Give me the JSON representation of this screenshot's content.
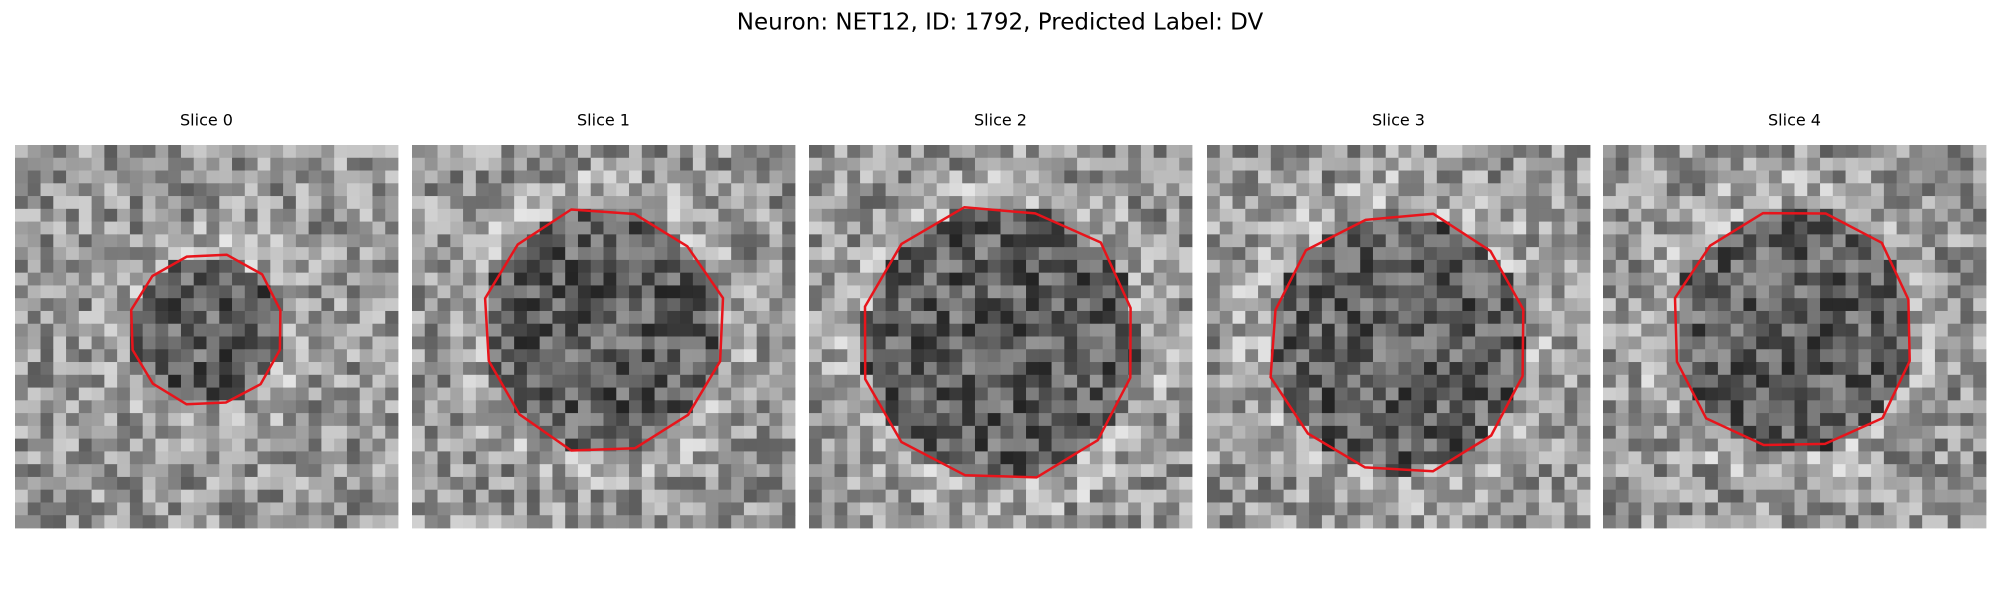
{
  "header": {
    "title": "Neuron: NET12, ID: 1792, Predicted Label: DV"
  },
  "panels": [
    {
      "title": "Slice 0"
    },
    {
      "title": "Slice 1"
    },
    {
      "title": "Slice 2"
    },
    {
      "title": "Slice 3"
    },
    {
      "title": "Slice 4"
    }
  ]
}
